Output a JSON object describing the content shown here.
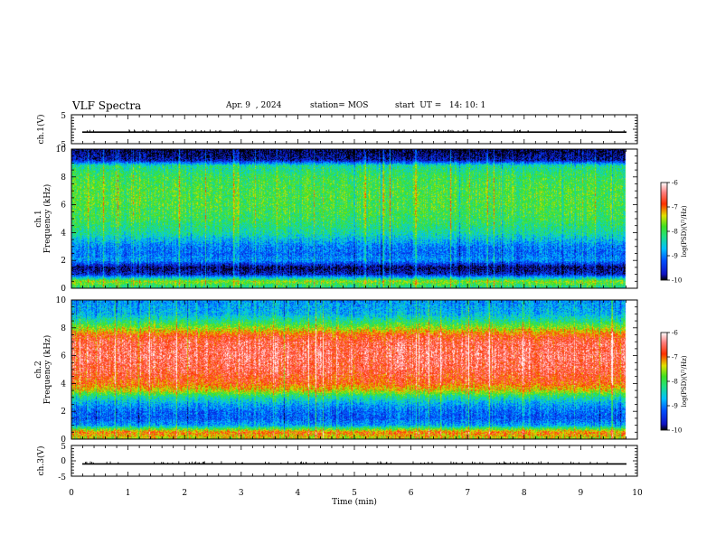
{
  "header": {
    "title": "VLF Spectra",
    "date": "Apr. 9  , 2024",
    "station": "station= MOS",
    "start": "start  UT =   14: 10: 1"
  },
  "chart_data": [
    {
      "type": "line",
      "ylabel": "ch.1(V)",
      "ylim": [
        -5,
        5
      ],
      "yticks": [
        "5",
        "-5"
      ],
      "xlim": [
        0,
        10
      ],
      "series": [
        {
          "values": [
            -1.0,
            -1.0
          ]
        }
      ]
    },
    {
      "type": "heatmap",
      "ylabel": "ch.1\nFrequency (kHz)",
      "ylabel_top": "ch.1",
      "ylabel_bottom": "Frequency (kHz)",
      "xlim": [
        0,
        10
      ],
      "ylim": [
        0,
        10
      ],
      "yticks": [
        "0",
        "2",
        "4",
        "6",
        "8",
        "10"
      ],
      "data_end_min": 9.8,
      "colorbar": {
        "label": "log(PSD)(V²/Hz)",
        "ticks": [
          "-6",
          "-7",
          "-8",
          "-9",
          "-10"
        ],
        "range": [
          -10,
          -6
        ]
      },
      "profile_khz": [
        0,
        0.5,
        1.0,
        1.5,
        2.0,
        2.5,
        3.0,
        4.0,
        5.0,
        6.0,
        7.0,
        8.0,
        8.8,
        9.2,
        10.0
      ],
      "profile_level": [
        -8.3,
        -7.6,
        -9.6,
        -9.9,
        -8.9,
        -9.1,
        -9.0,
        -8.3,
        -8.0,
        -7.9,
        -7.9,
        -8.0,
        -8.3,
        -9.7,
        -10.0
      ]
    },
    {
      "type": "heatmap",
      "ylabel": "ch.2\nFrequency (kHz)",
      "ylabel_top": "ch.2",
      "ylabel_bottom": "Frequency (kHz)",
      "xlim": [
        0,
        10
      ],
      "ylim": [
        0,
        10
      ],
      "yticks": [
        "0",
        "2",
        "4",
        "6",
        "8",
        "10"
      ],
      "data_end_min": 9.8,
      "colorbar": {
        "label": "log(PSD)(V²/Hz)",
        "ticks": [
          "-6",
          "-7",
          "-8",
          "-9",
          "-10"
        ],
        "range": [
          -10,
          -6
        ]
      },
      "profile_khz": [
        0,
        0.5,
        1.0,
        1.5,
        2.0,
        2.5,
        3.0,
        3.5,
        4.0,
        5.0,
        6.0,
        7.0,
        7.5,
        8.0,
        8.5,
        9.0,
        10.0
      ],
      "profile_level": [
        -7.5,
        -7.0,
        -8.8,
        -9.2,
        -9.1,
        -8.8,
        -8.3,
        -7.4,
        -6.9,
        -6.6,
        -6.5,
        -6.6,
        -6.9,
        -7.6,
        -8.2,
        -8.7,
        -8.9
      ]
    },
    {
      "type": "line",
      "ylabel": "ch.3(V)",
      "xlabel": "Time (min)",
      "ylim": [
        -5,
        5
      ],
      "yticks": [
        "5",
        "0",
        "-5"
      ],
      "xlim": [
        0,
        10
      ],
      "xticks": [
        "0",
        "1",
        "2",
        "3",
        "4",
        "5",
        "6",
        "7",
        "8",
        "9",
        "10"
      ],
      "series": [
        {
          "values": [
            -1.0,
            -1.0
          ]
        }
      ]
    }
  ],
  "colors": {
    "axis": "#000000",
    "background": "#ffffff"
  }
}
